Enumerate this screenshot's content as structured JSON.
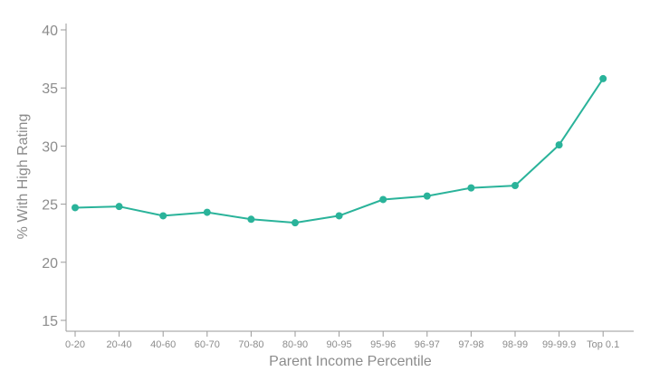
{
  "colors": {
    "series": "#2ab39a",
    "axis": "#9a9a9a",
    "text": "#8c8c8c",
    "background": "#ffffff"
  },
  "chart_data": {
    "type": "line",
    "title": "",
    "xlabel": "Parent Income Percentile",
    "ylabel": "% With High Rating",
    "ylim": [
      15,
      40
    ],
    "yticks": [
      15,
      20,
      25,
      30,
      35,
      40
    ],
    "grid": false,
    "categories": [
      "0-20",
      "20-40",
      "40-60",
      "60-70",
      "70-80",
      "80-90",
      "90-95",
      "95-96",
      "96-97",
      "97-98",
      "98-99",
      "99-99.9",
      "Top 0.1"
    ],
    "series": [
      {
        "values": [
          24.7,
          24.8,
          24.0,
          24.3,
          23.7,
          23.4,
          24.0,
          25.4,
          25.7,
          26.4,
          26.6,
          30.1,
          35.8
        ]
      }
    ]
  }
}
